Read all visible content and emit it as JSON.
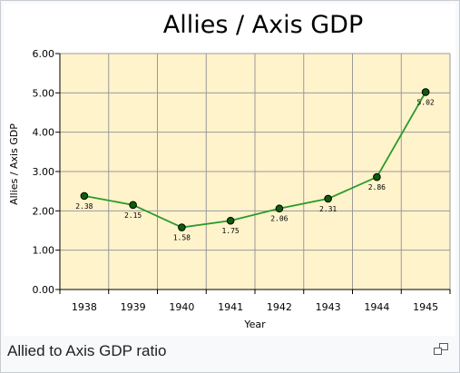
{
  "caption": "Allied to Axis GDP ratio",
  "enlarge_icon": "magnify-clip-icon",
  "colors": {
    "plot_bg": "#fff3cc",
    "line": "#2a9a2a",
    "marker_fill": "#0c5e0c",
    "grid": "#999999"
  },
  "chart_data": {
    "type": "line",
    "title": "Allies / Axis GDP",
    "xlabel": "Year",
    "ylabel": "Allies / Axis GDP",
    "categories": [
      "1938",
      "1939",
      "1940",
      "1941",
      "1942",
      "1943",
      "1944",
      "1945"
    ],
    "series": [
      {
        "values": [
          2.38,
          2.15,
          1.58,
          1.75,
          2.06,
          2.31,
          2.86,
          5.02
        ]
      }
    ],
    "data_labels": [
      "2.38",
      "2.15",
      "1.58",
      "1.75",
      "2.06",
      "2.31",
      "2.86",
      "5.02"
    ],
    "yticks": [
      "0.00",
      "1.00",
      "2.00",
      "3.00",
      "4.00",
      "5.00",
      "6.00"
    ],
    "ylim": [
      0,
      6
    ],
    "grid": true,
    "legend": "none"
  }
}
